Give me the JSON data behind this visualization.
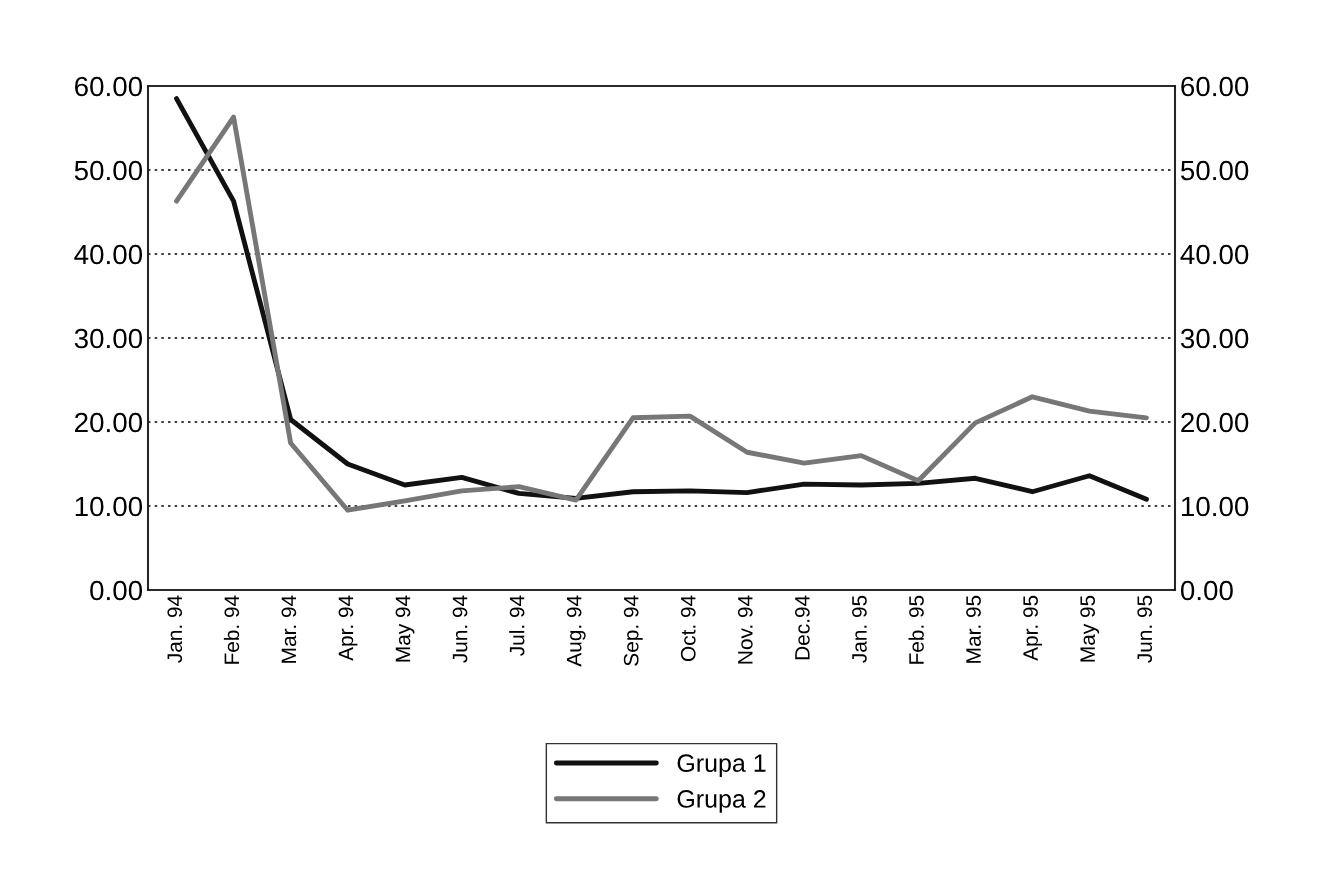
{
  "chart_data": {
    "type": "line",
    "categories": [
      "Jan. 94",
      "Feb. 94",
      "Mar. 94",
      "Apr. 94",
      "May 94",
      "Jun. 94",
      "Jul. 94",
      "Aug. 94",
      "Sep. 94",
      "Oct. 94",
      "Nov. 94",
      "Dec.94",
      "Jan. 95",
      "Feb. 95",
      "Mar. 95",
      "Apr. 95",
      "May 95",
      "Jun. 95"
    ],
    "series": [
      {
        "name": "Grupa 1",
        "color": "#111111",
        "values": [
          58.5,
          46.3,
          20.3,
          15.0,
          12.5,
          13.4,
          11.5,
          10.9,
          11.7,
          11.8,
          11.6,
          12.6,
          12.5,
          12.7,
          13.3,
          11.7,
          13.6,
          10.8
        ]
      },
      {
        "name": "Grupa 2",
        "color": "#777777",
        "values": [
          46.3,
          56.3,
          17.5,
          9.5,
          10.6,
          11.8,
          12.3,
          10.7,
          20.5,
          20.7,
          16.4,
          15.1,
          16.0,
          13.0,
          19.9,
          23.0,
          21.3,
          20.5
        ]
      }
    ],
    "ylim": [
      0,
      60
    ],
    "yticks": [
      {
        "value": 0,
        "label": "0.00"
      },
      {
        "value": 10,
        "label": "10.00"
      },
      {
        "value": 20,
        "label": "20.00"
      },
      {
        "value": 30,
        "label": "30.00"
      },
      {
        "value": 40,
        "label": "40.00"
      },
      {
        "value": 50,
        "label": "50.00"
      },
      {
        "value": 60,
        "label": "60.00"
      }
    ],
    "y2lim": [
      0,
      60
    ],
    "y2ticks": [
      {
        "value": 0,
        "label": "0.00"
      },
      {
        "value": 10,
        "label": "10.00"
      },
      {
        "value": 20,
        "label": "20.00"
      },
      {
        "value": 30,
        "label": "30.00"
      },
      {
        "value": 40,
        "label": "40.00"
      },
      {
        "value": 50,
        "label": "50.00"
      },
      {
        "value": 60,
        "label": "60.00"
      }
    ],
    "grid": true,
    "legend": "bottom",
    "line_style": "solid",
    "marker": "none"
  }
}
